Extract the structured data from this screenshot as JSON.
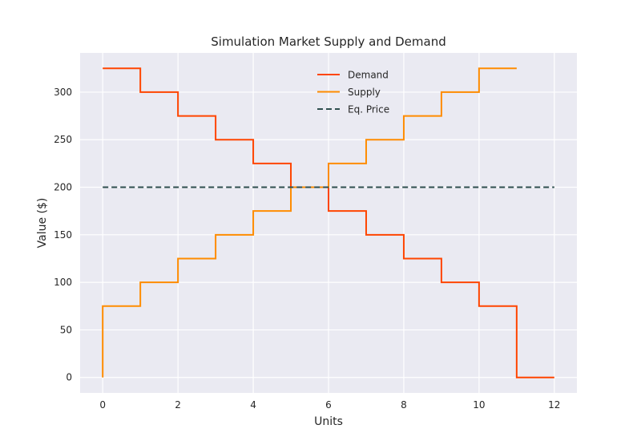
{
  "chart_data": {
    "type": "line",
    "title": "Simulation Market Supply and Demand",
    "xlabel": "Units",
    "ylabel": "Value ($)",
    "xlim": [
      -0.6,
      12.6
    ],
    "ylim": [
      -16.25,
      341.25
    ],
    "xticks": [
      0,
      2,
      4,
      6,
      8,
      10,
      12
    ],
    "yticks": [
      0,
      50,
      100,
      150,
      200,
      250,
      300
    ],
    "grid": true,
    "legend_position": "upper center",
    "series": [
      {
        "name": "Demand",
        "color": "#ff4500",
        "style": "steps-post",
        "x": [
          0,
          1,
          2,
          3,
          4,
          5,
          6,
          7,
          8,
          9,
          10,
          11,
          12
        ],
        "y": [
          325,
          300,
          275,
          250,
          225,
          200,
          175,
          150,
          125,
          100,
          75,
          0,
          0
        ]
      },
      {
        "name": "Supply",
        "color": "#ff8c00",
        "style": "steps-post",
        "x": [
          0,
          0,
          1,
          2,
          3,
          4,
          5,
          6,
          7,
          8,
          9,
          10,
          11
        ],
        "y": [
          0,
          75,
          100,
          125,
          150,
          175,
          200,
          225,
          250,
          275,
          300,
          325,
          325
        ]
      },
      {
        "name": "Eq. Price",
        "color": "#2f4f4f",
        "style": "dashed",
        "x": [
          0,
          12
        ],
        "y": [
          200,
          200
        ]
      }
    ]
  }
}
